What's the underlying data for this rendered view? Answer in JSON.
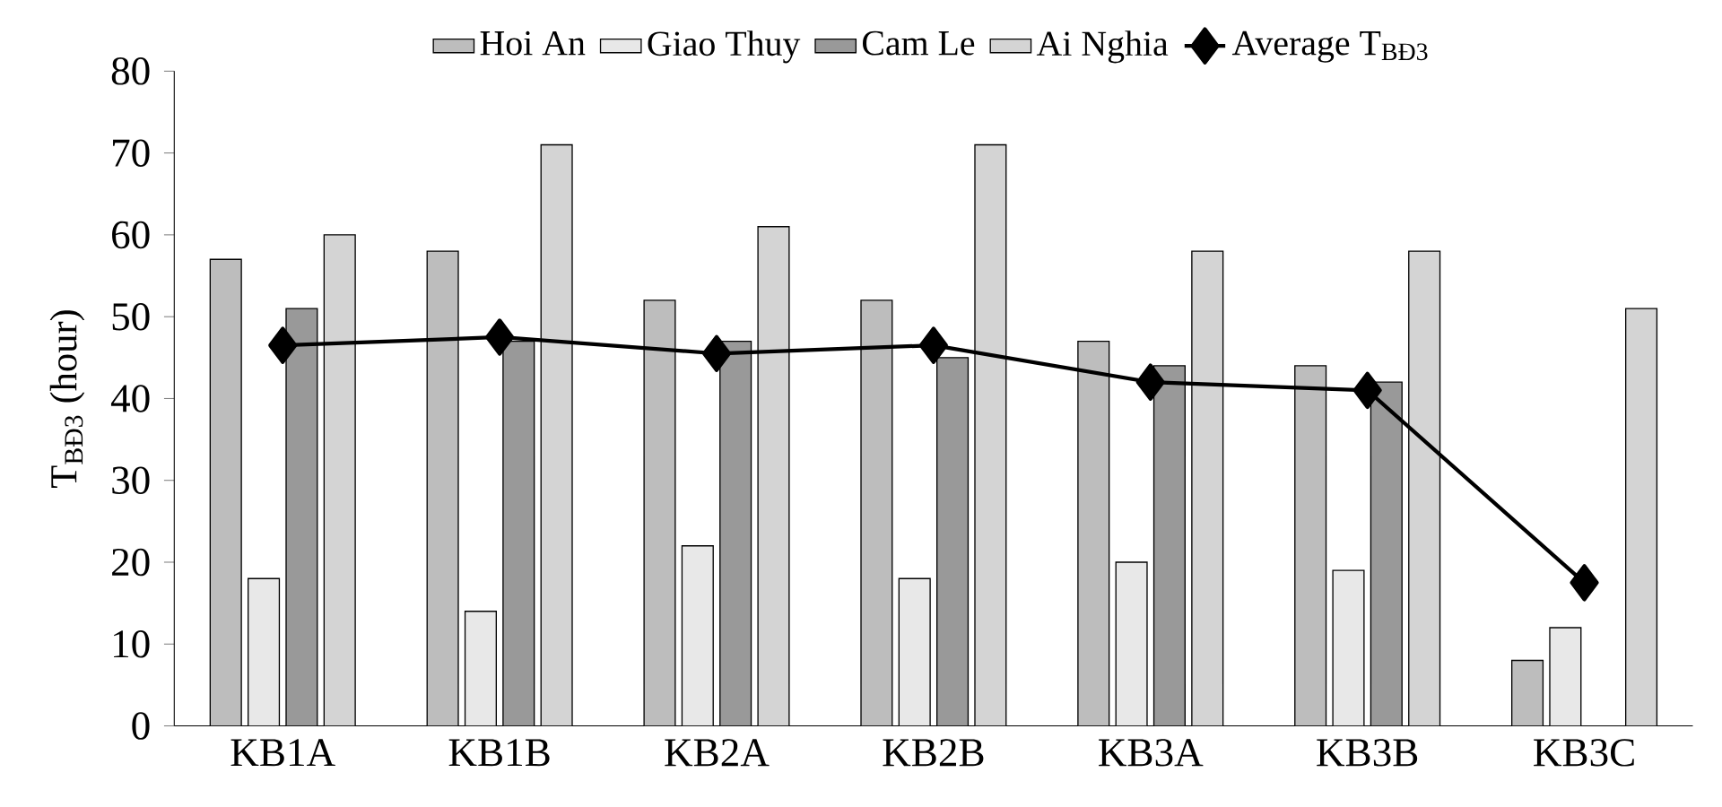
{
  "chart_data": {
    "type": "bar",
    "ylabel": "T$_{BĐ3}$ (hour)",
    "categories": [
      "KB1A",
      "KB1B",
      "KB2A",
      "KB2B",
      "KB3A",
      "KB3B",
      "KB3C"
    ],
    "series": [
      {
        "name": "Hoi An",
        "color": "#bdbdbd",
        "values": [
          57,
          58,
          52,
          52,
          47,
          44,
          8
        ]
      },
      {
        "name": "Giao Thuy",
        "color": "#e8e8e8",
        "values": [
          18,
          14,
          22,
          18,
          20,
          19,
          12
        ]
      },
      {
        "name": "Cam Le",
        "color": "#999999",
        "values": [
          51,
          47,
          47,
          45,
          44,
          42,
          0
        ]
      },
      {
        "name": "Ai Nghia",
        "color": "#d4d4d4",
        "values": [
          60,
          71,
          61,
          71,
          58,
          58,
          51
        ]
      },
      {
        "name": "Average T$_{BĐ3}$",
        "type": "line",
        "color": "#000000",
        "values": [
          46.5,
          47.5,
          45.5,
          46.5,
          42,
          41,
          17.5
        ]
      }
    ],
    "ylim": [
      0,
      80
    ],
    "yticks": [
      0,
      10,
      20,
      30,
      40,
      50,
      60,
      70,
      80
    ],
    "marker": "diamond",
    "legend": "top",
    "grid": false
  }
}
